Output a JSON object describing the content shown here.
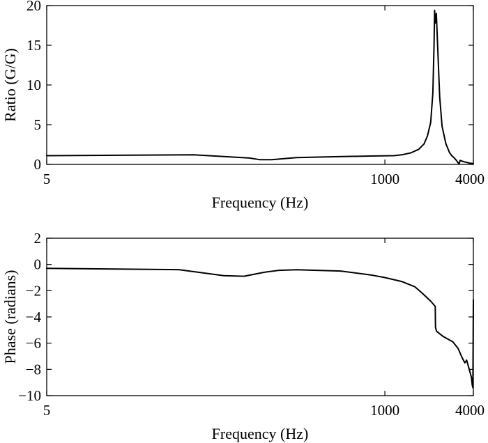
{
  "chart_data": [
    {
      "type": "line",
      "xlabel": "Frequency (Hz)",
      "ylabel": "Ratio (G/G)",
      "xlim": [
        5,
        4000
      ],
      "ylim": [
        0,
        20
      ],
      "xticks": [
        5,
        1000,
        4000
      ],
      "xtick_labels": [
        "5",
        "1000",
        "4000"
      ],
      "yticks": [
        0,
        5,
        10,
        15,
        20
      ],
      "ytick_labels": [
        "0",
        "5",
        "10",
        "15",
        "20"
      ],
      "grid": false,
      "series": [
        {
          "x": [
            5,
            50,
            120,
            140,
            170,
            250,
            400,
            800,
            1150,
            1300,
            1500,
            1700,
            1850,
            1950,
            2050,
            2120,
            2160,
            2180,
            2200,
            2240,
            2280,
            2360,
            2450,
            2600,
            2750,
            2850,
            2950,
            3050,
            3150,
            3200,
            3250,
            3350,
            3600,
            3800,
            4000
          ],
          "y": [
            1.1,
            1.2,
            0.8,
            0.6,
            0.6,
            0.85,
            0.95,
            1.05,
            1.1,
            1.2,
            1.45,
            1.9,
            2.6,
            3.6,
            5.3,
            9.0,
            15.0,
            19.4,
            17.8,
            19.0,
            15.5,
            8.5,
            4.8,
            2.6,
            1.5,
            1.1,
            0.85,
            0.55,
            0.2,
            0.05,
            0.5,
            0.4,
            0.25,
            0.15,
            0.1
          ]
        }
      ]
    },
    {
      "type": "line",
      "xlabel": "Frequency (Hz)",
      "ylabel": "Phase (radians)",
      "xlim": [
        5,
        4000
      ],
      "ylim": [
        -10,
        2
      ],
      "xticks": [
        5,
        1000,
        4000
      ],
      "xtick_labels": [
        "5",
        "1000",
        "4000"
      ],
      "yticks": [
        2,
        0,
        -2,
        -4,
        -6,
        -8,
        -10
      ],
      "ytick_labels": [
        "2",
        "0",
        "−2",
        "−4",
        "−6",
        "−8",
        "−10"
      ],
      "grid": false,
      "series": [
        {
          "x": [
            5,
            40,
            80,
            110,
            150,
            190,
            250,
            500,
            800,
            1000,
            1300,
            1600,
            1800,
            2050,
            2200,
            2210,
            2250,
            2500,
            2900,
            3150,
            3350,
            3500,
            3600,
            3750,
            3880,
            3930,
            3970,
            4000
          ],
          "y": [
            -0.3,
            -0.4,
            -0.85,
            -0.9,
            -0.6,
            -0.45,
            -0.4,
            -0.5,
            -0.8,
            -1.0,
            -1.3,
            -1.7,
            -2.2,
            -2.8,
            -3.2,
            -4.8,
            -5.1,
            -5.5,
            -5.9,
            -6.4,
            -7.1,
            -7.5,
            -7.3,
            -8.0,
            -8.6,
            -9.2,
            -9.4,
            -2.7
          ]
        }
      ]
    }
  ]
}
